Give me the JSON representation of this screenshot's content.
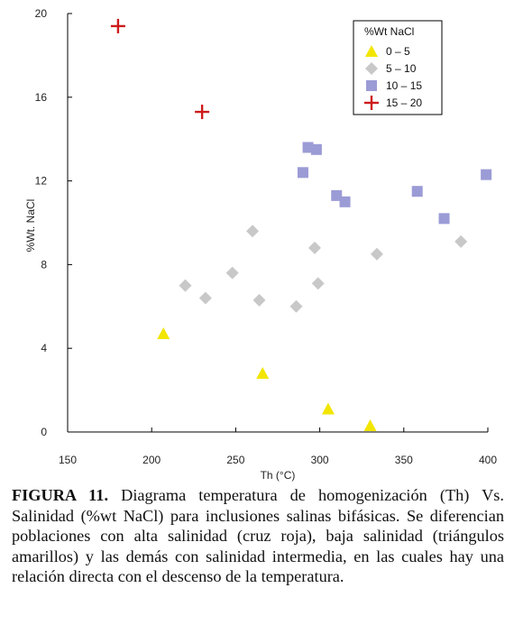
{
  "chart_data": {
    "type": "scatter",
    "xlabel": "Th (°C)",
    "ylabel": "%Wt. NaCl",
    "xlim": [
      150,
      400
    ],
    "ylim": [
      0,
      20
    ],
    "x_ticks": [
      "150",
      "200",
      "250",
      "300",
      "350",
      "400"
    ],
    "y_ticks": [
      "0",
      "4",
      "8",
      "12",
      "16",
      "20"
    ],
    "grid": false,
    "legend": {
      "title": "%Wt NaCl",
      "position": "top-right"
    },
    "series": [
      {
        "name": "0 – 5",
        "marker": "triangle",
        "color": "#f2e600",
        "points": [
          [
            207,
            4.7
          ],
          [
            266,
            2.8
          ],
          [
            305,
            1.1
          ],
          [
            330,
            0.3
          ]
        ]
      },
      {
        "name": "5 – 10",
        "marker": "diamond",
        "color": "#c8c8c8",
        "points": [
          [
            220,
            7.0
          ],
          [
            232,
            6.4
          ],
          [
            248,
            7.6
          ],
          [
            260,
            9.6
          ],
          [
            264,
            6.3
          ],
          [
            286,
            6.0
          ],
          [
            297,
            8.8
          ],
          [
            299,
            7.1
          ],
          [
            334,
            8.5
          ],
          [
            384,
            9.1
          ]
        ]
      },
      {
        "name": "10 – 15",
        "marker": "square",
        "color": "#9b9bd6",
        "points": [
          [
            290,
            12.4
          ],
          [
            293,
            13.6
          ],
          [
            298,
            13.5
          ],
          [
            310,
            11.3
          ],
          [
            315,
            11.0
          ],
          [
            358,
            11.5
          ],
          [
            374,
            10.2
          ],
          [
            399,
            12.3
          ]
        ]
      },
      {
        "name": "15 – 20",
        "marker": "cross",
        "color": "#cc1a1a",
        "points": [
          [
            180,
            19.4
          ],
          [
            230,
            15.3
          ]
        ]
      }
    ]
  },
  "caption": {
    "label": "FIGURA 11.",
    "text": " Diagrama temperatura de homogenización (Th) Vs. Salinidad (%wt NaCl) para inclusiones salinas bifásicas. Se diferencian poblaciones con alta salinidad (cruz roja), baja salinidad (triángulos amarillos) y las demás con salinidad intermedia, en las cuales hay una relación directa con el descenso de la temperatura."
  }
}
